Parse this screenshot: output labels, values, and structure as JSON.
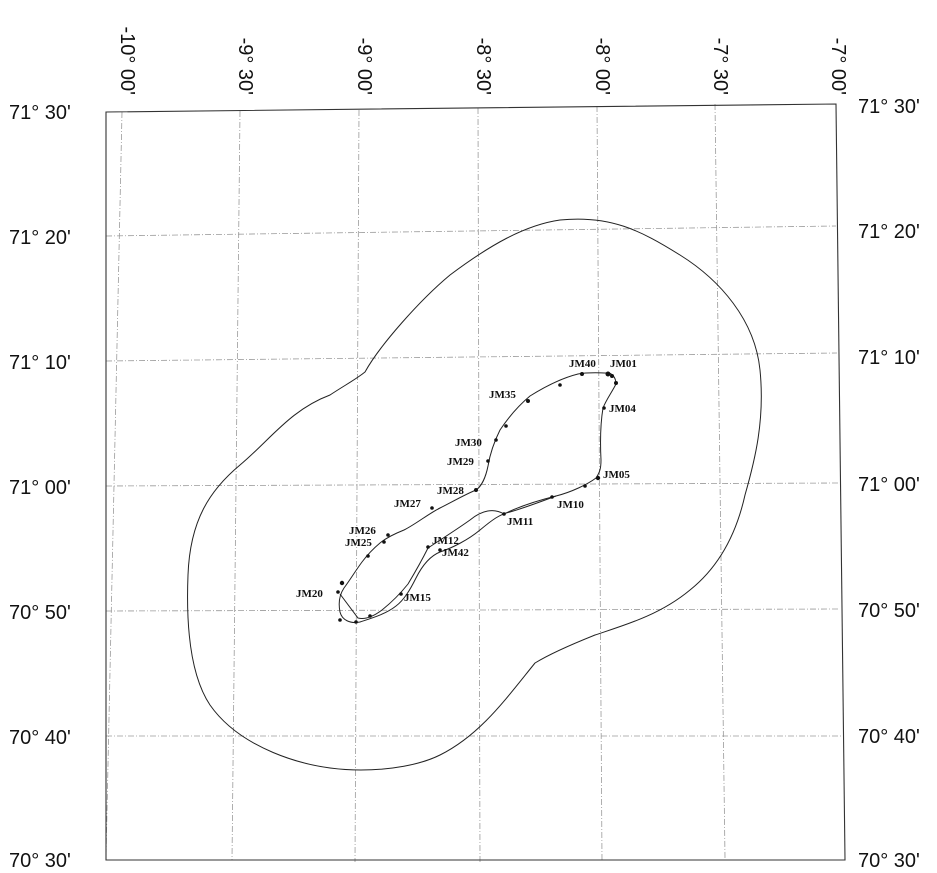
{
  "map": {
    "lon_labels": [
      "-10° 00'",
      "-9° 30'",
      "-9° 00'",
      "-8° 30'",
      "-8° 00'",
      "-7° 30'",
      "-7° 00'"
    ],
    "lat_labels_left": [
      "71° 30'",
      "71° 20'",
      "71° 10'",
      "71° 00'",
      "70° 50'",
      "70° 40'",
      "70° 30'"
    ],
    "lat_labels_right": [
      "71° 30'",
      "71° 20'",
      "71° 10'",
      "71° 00'",
      "70° 50'",
      "70° 40'",
      "70° 30'"
    ],
    "stations": [
      "JM40",
      "JM01",
      "JM35",
      "JM04",
      "JM30",
      "JM29",
      "JM05",
      "JM28",
      "JM27",
      "JM10",
      "JM11",
      "JM26",
      "JM25",
      "JM12",
      "JM42",
      "JM20",
      "JM15"
    ]
  }
}
